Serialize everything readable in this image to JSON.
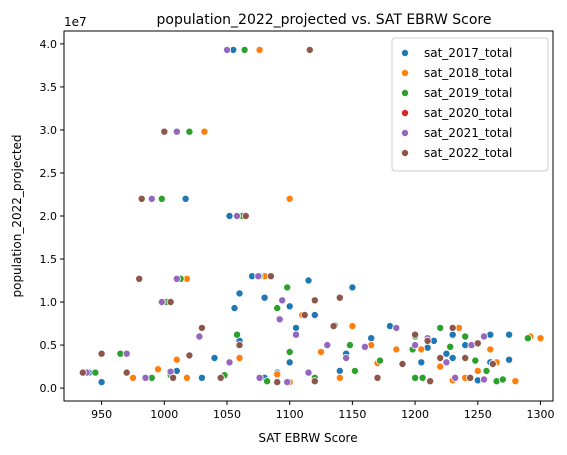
{
  "chart_data": {
    "type": "scatter",
    "title": "population_2022_projected vs. SAT EBRW Score",
    "xlabel": "SAT EBRW Score",
    "ylabel": "population_2022_projected",
    "y_multiplier_label": "1e7",
    "xlim": [
      920,
      1310
    ],
    "ylim": [
      -0.15,
      4.15
    ],
    "x_ticks": [
      950,
      1000,
      1050,
      1100,
      1150,
      1200,
      1250,
      1300
    ],
    "x_tick_labels": [
      "950",
      "1000",
      "1050",
      "1100",
      "1150",
      "1200",
      "1250",
      "1300"
    ],
    "y_ticks": [
      0,
      0.5,
      1,
      1.5,
      2,
      2.5,
      3,
      3.5,
      4
    ],
    "y_tick_labels": [
      "0.0",
      "0.5",
      "1.0",
      "1.5",
      "2.0",
      "2.5",
      "3.0",
      "3.5",
      "4.0"
    ],
    "grid": false,
    "legend_position": "top-right",
    "series": [
      {
        "name": "sat_2017_total",
        "color": "#1f77b4",
        "points": [
          [
            1055,
            3.93
          ],
          [
            1017,
            2.2
          ],
          [
            1052,
            2.0
          ],
          [
            998,
            1.0
          ],
          [
            1040,
            0.35
          ],
          [
            1060,
            0.55
          ],
          [
            1070,
            1.3
          ],
          [
            1056,
            0.93
          ],
          [
            1060,
            1.1
          ],
          [
            1080,
            1.05
          ],
          [
            1100,
            0.95
          ],
          [
            1105,
            0.7
          ],
          [
            1115,
            1.25
          ],
          [
            1120,
            0.85
          ],
          [
            1150,
            1.17
          ],
          [
            1165,
            0.58
          ],
          [
            1180,
            0.72
          ],
          [
            1200,
            0.6
          ],
          [
            1210,
            0.47
          ],
          [
            1215,
            0.55
          ],
          [
            1225,
            0.4
          ],
          [
            1230,
            0.62
          ],
          [
            1240,
            0.5
          ],
          [
            1260,
            0.62
          ],
          [
            1275,
            0.62
          ],
          [
            1275,
            0.33
          ],
          [
            1100,
            0.3
          ],
          [
            1080,
            0.12
          ],
          [
            1090,
            0.18
          ],
          [
            1140,
            0.2
          ],
          [
            1200,
            0.11
          ],
          [
            1030,
            0.12
          ],
          [
            1010,
            0.2
          ],
          [
            940,
            0.18
          ],
          [
            950,
            0.07
          ],
          [
            1205,
            0.3
          ],
          [
            1145,
            0.4
          ],
          [
            1230,
            0.35
          ],
          [
            1260,
            0.3
          ],
          [
            1250,
            0.09
          ]
        ]
      },
      {
        "name": "sat_2018_total",
        "color": "#ff7f0e",
        "points": [
          [
            1076,
            3.93
          ],
          [
            1032,
            2.98
          ],
          [
            1100,
            2.2
          ],
          [
            1065,
            2.0
          ],
          [
            1018,
            1.27
          ],
          [
            1005,
            1.0
          ],
          [
            1080,
            1.3
          ],
          [
            1110,
            0.85
          ],
          [
            1150,
            0.72
          ],
          [
            1165,
            0.5
          ],
          [
            1205,
            0.45
          ],
          [
            1235,
            0.7
          ],
          [
            1260,
            0.45
          ],
          [
            1265,
            0.3
          ],
          [
            1250,
            0.2
          ],
          [
            1280,
            0.08
          ],
          [
            1300,
            0.58
          ],
          [
            1292,
            0.6
          ],
          [
            1220,
            0.25
          ],
          [
            1185,
            0.45
          ],
          [
            1140,
            0.12
          ],
          [
            1100,
            0.07
          ],
          [
            1060,
            0.35
          ],
          [
            1018,
            0.12
          ],
          [
            995,
            0.22
          ],
          [
            975,
            0.12
          ],
          [
            1010,
            0.33
          ],
          [
            1090,
            0.16
          ],
          [
            1125,
            0.42
          ],
          [
            1170,
            0.29
          ],
          [
            1240,
            0.12
          ],
          [
            1230,
            0.09
          ]
        ]
      },
      {
        "name": "sat_2019_total",
        "color": "#2ca02c",
        "points": [
          [
            1064,
            3.93
          ],
          [
            1020,
            2.98
          ],
          [
            998,
            2.2
          ],
          [
            1062,
            2.0
          ],
          [
            1013,
            1.27
          ],
          [
            1002,
            1.0
          ],
          [
            1076,
            1.3
          ],
          [
            1098,
            1.17
          ],
          [
            1090,
            0.93
          ],
          [
            1058,
            0.62
          ],
          [
            1136,
            0.73
          ],
          [
            1148,
            0.5
          ],
          [
            1198,
            0.45
          ],
          [
            1220,
            0.7
          ],
          [
            1240,
            0.6
          ],
          [
            1257,
            0.2
          ],
          [
            1265,
            0.08
          ],
          [
            1270,
            0.1
          ],
          [
            1290,
            0.58
          ],
          [
            1200,
            0.12
          ],
          [
            1172,
            0.32
          ],
          [
            1120,
            0.12
          ],
          [
            1082,
            0.08
          ],
          [
            1048,
            0.15
          ],
          [
            965,
            0.4
          ],
          [
            945,
            0.18
          ],
          [
            990,
            0.12
          ],
          [
            1005,
            0.15
          ],
          [
            1100,
            0.42
          ],
          [
            1200,
            0.6
          ],
          [
            1248,
            0.32
          ],
          [
            1228,
            0.48
          ],
          [
            1206,
            0.12
          ],
          [
            1152,
            0.2
          ]
        ]
      },
      {
        "name": "sat_2020_total",
        "color": "#d62728",
        "points": []
      },
      {
        "name": "sat_2021_total",
        "color": "#9467bd",
        "points": [
          [
            1050,
            3.93
          ],
          [
            1010,
            2.98
          ],
          [
            990,
            2.2
          ],
          [
            1058,
            2.0
          ],
          [
            1010,
            1.27
          ],
          [
            998,
            1.0
          ],
          [
            1075,
            1.3
          ],
          [
            1094,
            1.02
          ],
          [
            1092,
            0.8
          ],
          [
            1105,
            0.62
          ],
          [
            1145,
            0.35
          ],
          [
            1185,
            0.7
          ],
          [
            1210,
            0.58
          ],
          [
            1225,
            0.3
          ],
          [
            1232,
            0.12
          ],
          [
            1245,
            0.5
          ],
          [
            1255,
            0.6
          ],
          [
            1200,
            0.5
          ],
          [
            1160,
            0.48
          ],
          [
            1130,
            0.5
          ],
          [
            1098,
            0.07
          ],
          [
            1052,
            0.3
          ],
          [
            1028,
            0.6
          ],
          [
            1005,
            0.19
          ],
          [
            985,
            0.12
          ],
          [
            970,
            0.4
          ],
          [
            938,
            0.18
          ],
          [
            1076,
            0.12
          ],
          [
            1115,
            0.18
          ],
          [
            1255,
            0.1
          ]
        ]
      },
      {
        "name": "sat_2022_total",
        "color": "#8c564b",
        "points": [
          [
            1116,
            3.93
          ],
          [
            1000,
            2.98
          ],
          [
            982,
            2.2
          ],
          [
            1065,
            2.0
          ],
          [
            980,
            1.27
          ],
          [
            1005,
            1.0
          ],
          [
            1085,
            1.3
          ],
          [
            1120,
            1.02
          ],
          [
            1140,
            1.05
          ],
          [
            1135,
            0.72
          ],
          [
            1200,
            0.62
          ],
          [
            1220,
            0.35
          ],
          [
            1240,
            0.35
          ],
          [
            1262,
            0.28
          ],
          [
            1250,
            0.52
          ],
          [
            1230,
            0.7
          ],
          [
            1210,
            0.55
          ],
          [
            1190,
            0.28
          ],
          [
            1170,
            0.12
          ],
          [
            1120,
            0.08
          ],
          [
            1090,
            0.07
          ],
          [
            1045,
            0.12
          ],
          [
            1030,
            0.7
          ],
          [
            1020,
            0.38
          ],
          [
            1007,
            0.12
          ],
          [
            970,
            0.18
          ],
          [
            950,
            0.4
          ],
          [
            935,
            0.18
          ],
          [
            1060,
            0.5
          ],
          [
            1112,
            0.85
          ],
          [
            1212,
            0.08
          ],
          [
            1244,
            0.12
          ]
        ]
      }
    ]
  }
}
